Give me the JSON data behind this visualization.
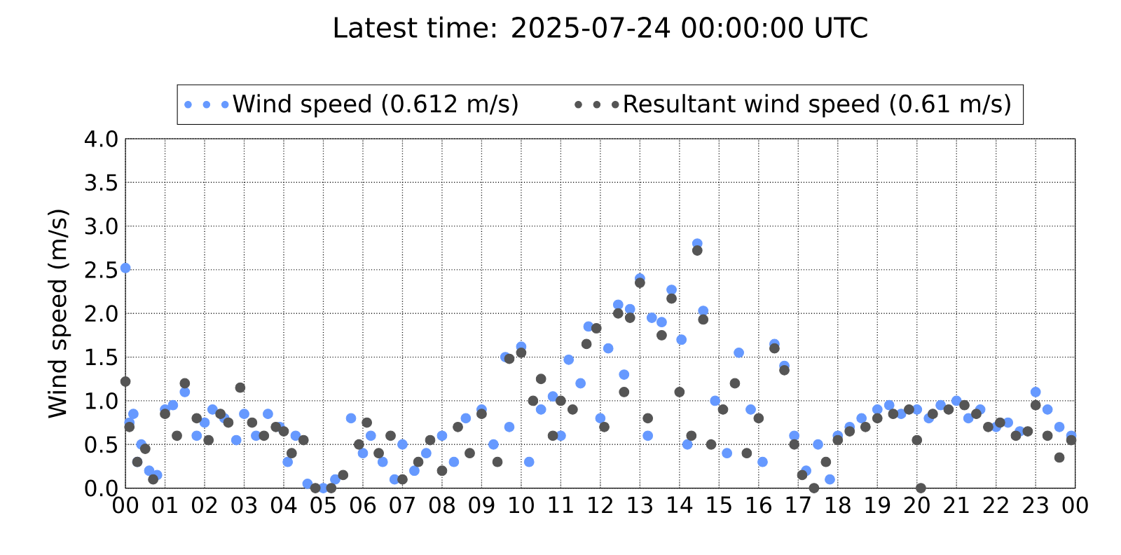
{
  "chart_data": {
    "type": "scatter",
    "title": "Latest time: 2025-07-24 00:00:00 UTC",
    "ylabel": "Wind speed (m/s)",
    "xlim": [
      0,
      24
    ],
    "ylim": [
      0,
      4.0
    ],
    "xticks": [
      {
        "value": 0,
        "label": "00"
      },
      {
        "value": 1,
        "label": "01"
      },
      {
        "value": 2,
        "label": "02"
      },
      {
        "value": 3,
        "label": "03"
      },
      {
        "value": 4,
        "label": "04"
      },
      {
        "value": 5,
        "label": "05"
      },
      {
        "value": 6,
        "label": "06"
      },
      {
        "value": 7,
        "label": "07"
      },
      {
        "value": 8,
        "label": "08"
      },
      {
        "value": 9,
        "label": "09"
      },
      {
        "value": 10,
        "label": "10"
      },
      {
        "value": 11,
        "label": "11"
      },
      {
        "value": 12,
        "label": "12"
      },
      {
        "value": 13,
        "label": "13"
      },
      {
        "value": 14,
        "label": "14"
      },
      {
        "value": 15,
        "label": "15"
      },
      {
        "value": 16,
        "label": "16"
      },
      {
        "value": 17,
        "label": "17"
      },
      {
        "value": 18,
        "label": "18"
      },
      {
        "value": 19,
        "label": "19"
      },
      {
        "value": 20,
        "label": "20"
      },
      {
        "value": 21,
        "label": "21"
      },
      {
        "value": 22,
        "label": "22"
      },
      {
        "value": 23,
        "label": "23"
      },
      {
        "value": 24,
        "label": "00"
      }
    ],
    "yticks": [
      {
        "value": 0,
        "label": "0.0"
      },
      {
        "value": 0.5,
        "label": "0.5"
      },
      {
        "value": 1.0,
        "label": "1.0"
      },
      {
        "value": 1.5,
        "label": "1.5"
      },
      {
        "value": 2.0,
        "label": "2.0"
      },
      {
        "value": 2.5,
        "label": "2.5"
      },
      {
        "value": 3.0,
        "label": "3.0"
      },
      {
        "value": 3.5,
        "label": "3.5"
      },
      {
        "value": 4.0,
        "label": "4.0"
      }
    ],
    "grid": true,
    "legend": "top",
    "marker": "circle",
    "series": [
      {
        "name": "Wind speed (0.612 m/s)",
        "color": "#6699ff",
        "x": [
          0,
          0.1,
          0.2,
          0.3,
          0.4,
          0.6,
          0.8,
          1.0,
          1.2,
          1.5,
          1.8,
          2.0,
          2.2,
          2.5,
          2.8,
          3.0,
          3.3,
          3.6,
          3.9,
          4.1,
          4.3,
          4.6,
          5.0,
          5.3,
          5.7,
          6.0,
          6.2,
          6.5,
          6.8,
          7.0,
          7.3,
          7.6,
          8.0,
          8.3,
          8.6,
          9.0,
          9.3,
          9.6,
          9.7,
          10.0,
          10.2,
          10.5,
          10.8,
          11.0,
          11.2,
          11.5,
          11.7,
          12.0,
          12.2,
          12.45,
          12.6,
          12.75,
          13.0,
          13.2,
          13.3,
          13.55,
          13.8,
          14.05,
          14.2,
          14.45,
          14.6,
          14.9,
          15.2,
          15.5,
          15.8,
          16.1,
          16.4,
          16.65,
          16.9,
          17.2,
          17.5,
          17.8,
          18.0,
          18.3,
          18.6,
          19.0,
          19.3,
          19.6,
          20.0,
          20.3,
          20.6,
          21.0,
          21.3,
          21.6,
          22.0,
          22.3,
          22.6,
          23.0,
          23.3,
          23.6,
          23.9
        ],
        "values": [
          2.52,
          0.75,
          0.85,
          0.3,
          0.5,
          0.2,
          0.15,
          0.9,
          0.95,
          1.1,
          0.6,
          0.75,
          0.9,
          0.8,
          0.55,
          0.85,
          0.6,
          0.85,
          0.7,
          0.3,
          0.6,
          0.05,
          0.0,
          0.1,
          0.8,
          0.4,
          0.6,
          0.3,
          0.1,
          0.5,
          0.2,
          0.4,
          0.6,
          0.3,
          0.8,
          0.9,
          0.5,
          1.5,
          0.7,
          1.62,
          0.3,
          0.9,
          1.05,
          0.6,
          1.47,
          1.2,
          1.85,
          0.8,
          1.6,
          2.1,
          1.3,
          2.05,
          2.4,
          0.6,
          1.95,
          1.9,
          2.27,
          1.7,
          0.5,
          2.8,
          2.03,
          1.0,
          0.4,
          1.55,
          0.9,
          0.3,
          1.65,
          1.4,
          0.6,
          0.2,
          0.5,
          0.1,
          0.6,
          0.7,
          0.8,
          0.9,
          0.95,
          0.85,
          0.9,
          0.8,
          0.95,
          1.0,
          0.8,
          0.9,
          0.7,
          0.75,
          0.65,
          1.1,
          0.9,
          0.7,
          0.6
        ]
      },
      {
        "name": "Resultant wind speed (0.61 m/s)",
        "color": "#555555",
        "x": [
          0,
          0.1,
          0.3,
          0.5,
          0.7,
          1.0,
          1.3,
          1.5,
          1.8,
          2.1,
          2.4,
          2.6,
          2.9,
          3.2,
          3.5,
          3.8,
          4.0,
          4.2,
          4.5,
          4.8,
          5.2,
          5.5,
          5.9,
          6.1,
          6.4,
          6.7,
          7.0,
          7.4,
          7.7,
          8.0,
          8.4,
          8.7,
          9.0,
          9.4,
          9.7,
          10.0,
          10.3,
          10.5,
          10.8,
          11.0,
          11.3,
          11.65,
          11.9,
          12.1,
          12.45,
          12.6,
          12.75,
          13.0,
          13.2,
          13.55,
          13.8,
          14.0,
          14.3,
          14.45,
          14.6,
          14.8,
          15.1,
          15.4,
          15.7,
          16.0,
          16.4,
          16.65,
          16.9,
          17.1,
          17.4,
          17.7,
          18.0,
          18.3,
          18.7,
          19.0,
          19.4,
          19.8,
          20.0,
          20.1,
          20.4,
          20.8,
          21.2,
          21.5,
          21.8,
          22.1,
          22.5,
          22.8,
          23.0,
          23.3,
          23.6,
          23.9
        ],
        "values": [
          1.22,
          0.7,
          0.3,
          0.45,
          0.1,
          0.85,
          0.6,
          1.2,
          0.8,
          0.55,
          0.85,
          0.75,
          1.15,
          0.75,
          0.6,
          0.7,
          0.65,
          0.4,
          0.55,
          0.0,
          0.0,
          0.15,
          0.5,
          0.75,
          0.4,
          0.6,
          0.1,
          0.3,
          0.55,
          0.2,
          0.7,
          0.4,
          0.85,
          0.3,
          1.48,
          1.55,
          1.0,
          1.25,
          0.6,
          1.0,
          0.9,
          1.65,
          1.83,
          0.7,
          2.0,
          1.1,
          1.95,
          2.35,
          0.8,
          1.75,
          2.17,
          1.1,
          0.6,
          2.72,
          1.93,
          0.5,
          0.9,
          1.2,
          0.4,
          0.8,
          1.6,
          1.35,
          0.5,
          0.15,
          0.0,
          0.3,
          0.55,
          0.65,
          0.7,
          0.8,
          0.85,
          0.9,
          0.55,
          0.0,
          0.85,
          0.9,
          0.95,
          0.85,
          0.7,
          0.75,
          0.6,
          0.65,
          0.95,
          0.6,
          0.35,
          0.55
        ]
      }
    ]
  }
}
